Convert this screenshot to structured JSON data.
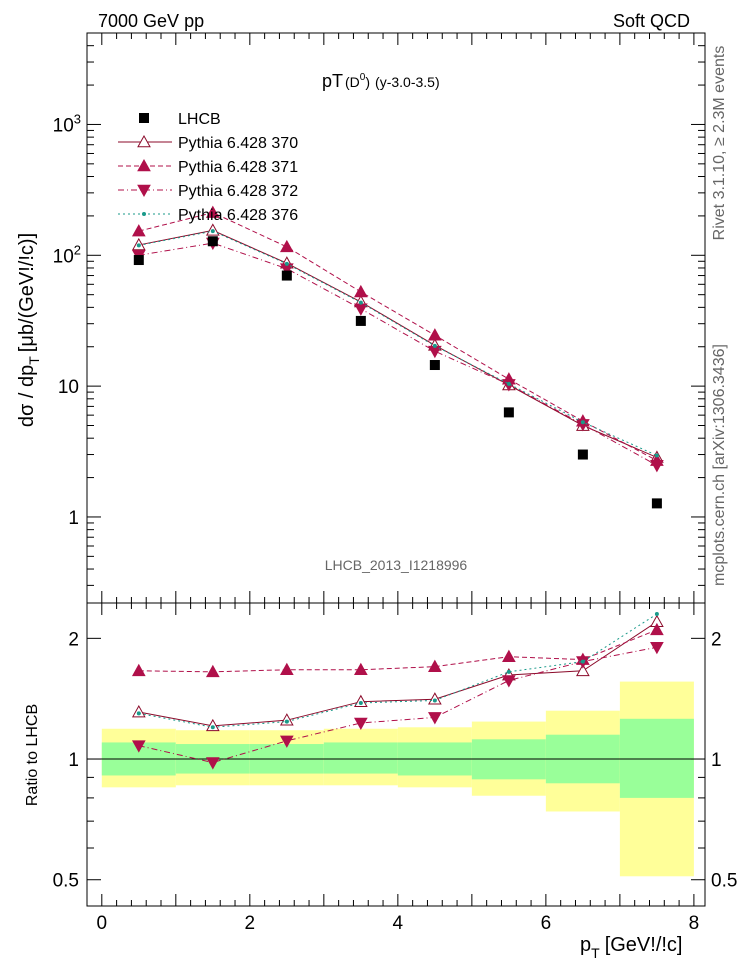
{
  "header": {
    "left": "7000 GeV pp",
    "right": "Soft QCD"
  },
  "side_labels": {
    "rivet": "Rivet 3.1.10, ≥ 2.3M events",
    "mcplots": "mcplots.cern.ch [arXiv:1306.3436]"
  },
  "watermark": "LHCB_2013_I1218996",
  "chart_data": [
    {
      "type": "scatter",
      "title_main": "pT",
      "title_sub": "(D",
      "title_sup": "0",
      "title_close": ")",
      "title_tail": "(y-3.0-3.5)",
      "ylabel": "dσ / dp",
      "ylabel_sub": "T",
      "ylabel_unit": "[μb/(GeV!/!c)]",
      "yscale": "log",
      "ylim": [
        0.22,
        5000
      ],
      "xlim": [
        -0.2,
        8.15
      ],
      "y_ticks": [
        {
          "v": 1,
          "label": "1"
        },
        {
          "v": 10,
          "label": "10"
        },
        {
          "v": 100,
          "label": "10",
          "sup": "2"
        },
        {
          "v": 1000,
          "label": "10",
          "sup": "3"
        }
      ],
      "x": [
        0.5,
        1.5,
        2.5,
        3.5,
        4.5,
        5.5,
        6.5,
        7.5
      ],
      "data": {
        "name": "LHCB",
        "values": [
          92,
          128,
          70,
          31.5,
          14.5,
          6.3,
          3.0,
          1.27
        ]
      },
      "series": [
        {
          "name": "Pythia 6.428 370",
          "color": "#8b0a2a",
          "marker": "triangle-open",
          "dash": "",
          "values": [
            120,
            155,
            87,
            44,
            20.5,
            10.2,
            5.0,
            2.85
          ]
        },
        {
          "name": "Pythia 6.428 371",
          "color": "#b0104a",
          "marker": "triangle-up",
          "dash": "5,3",
          "values": [
            153,
            212,
            116,
            52.5,
            24.5,
            11.3,
            5.4,
            2.7
          ]
        },
        {
          "name": "Pythia 6.428 372",
          "color": "#b0104a",
          "marker": "triangle-down",
          "dash": "6,3,1,3",
          "values": [
            100,
            124,
            79,
            39,
            18.5,
            10.3,
            5.1,
            2.48
          ]
        },
        {
          "name": "Pythia 6.428 376",
          "color": "#1a9a8a",
          "marker": "dot",
          "dash": "2,3",
          "values": [
            119,
            153,
            86,
            43.5,
            20.3,
            10.4,
            5.3,
            2.95
          ]
        }
      ]
    },
    {
      "type": "scatter",
      "ylabel": "Ratio to LHCB",
      "xlabel": "p",
      "xlabel_sub": "T",
      "xlabel_unit": "[GeV!/!c]",
      "yscale": "log",
      "ylim": [
        0.43,
        2.45
      ],
      "y_ticks": [
        {
          "v": 0.5,
          "label": "0.5"
        },
        {
          "v": 1,
          "label": "1"
        },
        {
          "v": 2,
          "label": "2"
        }
      ],
      "x_ticks": [
        0,
        2,
        4,
        6,
        8
      ],
      "bins": [
        [
          0,
          1
        ],
        [
          1,
          2
        ],
        [
          2,
          3
        ],
        [
          3,
          4
        ],
        [
          4,
          5
        ],
        [
          5,
          6
        ],
        [
          6,
          7
        ],
        [
          7,
          8
        ]
      ],
      "band_stat": [
        [
          0.91,
          1.1
        ],
        [
          0.92,
          1.09
        ],
        [
          0.92,
          1.09
        ],
        [
          0.92,
          1.1
        ],
        [
          0.91,
          1.1
        ],
        [
          0.89,
          1.12
        ],
        [
          0.87,
          1.15
        ],
        [
          0.8,
          1.26
        ]
      ],
      "band_total": [
        [
          0.85,
          1.19
        ],
        [
          0.86,
          1.18
        ],
        [
          0.86,
          1.18
        ],
        [
          0.86,
          1.19
        ],
        [
          0.85,
          1.2
        ],
        [
          0.81,
          1.24
        ],
        [
          0.74,
          1.32
        ],
        [
          0.51,
          1.56
        ]
      ],
      "series": [
        {
          "name": "Pythia 6.428 370",
          "values": [
            1.31,
            1.21,
            1.25,
            1.39,
            1.41,
            1.62,
            1.66,
            2.2
          ]
        },
        {
          "name": "Pythia 6.428 371",
          "values": [
            1.66,
            1.65,
            1.67,
            1.67,
            1.7,
            1.8,
            1.77,
            2.1
          ]
        },
        {
          "name": "Pythia 6.428 372",
          "values": [
            1.08,
            0.98,
            1.11,
            1.23,
            1.27,
            1.57,
            1.75,
            1.9
          ]
        },
        {
          "name": "Pythia 6.428 376",
          "values": [
            1.3,
            1.2,
            1.24,
            1.38,
            1.4,
            1.65,
            1.75,
            2.3
          ]
        }
      ]
    }
  ]
}
